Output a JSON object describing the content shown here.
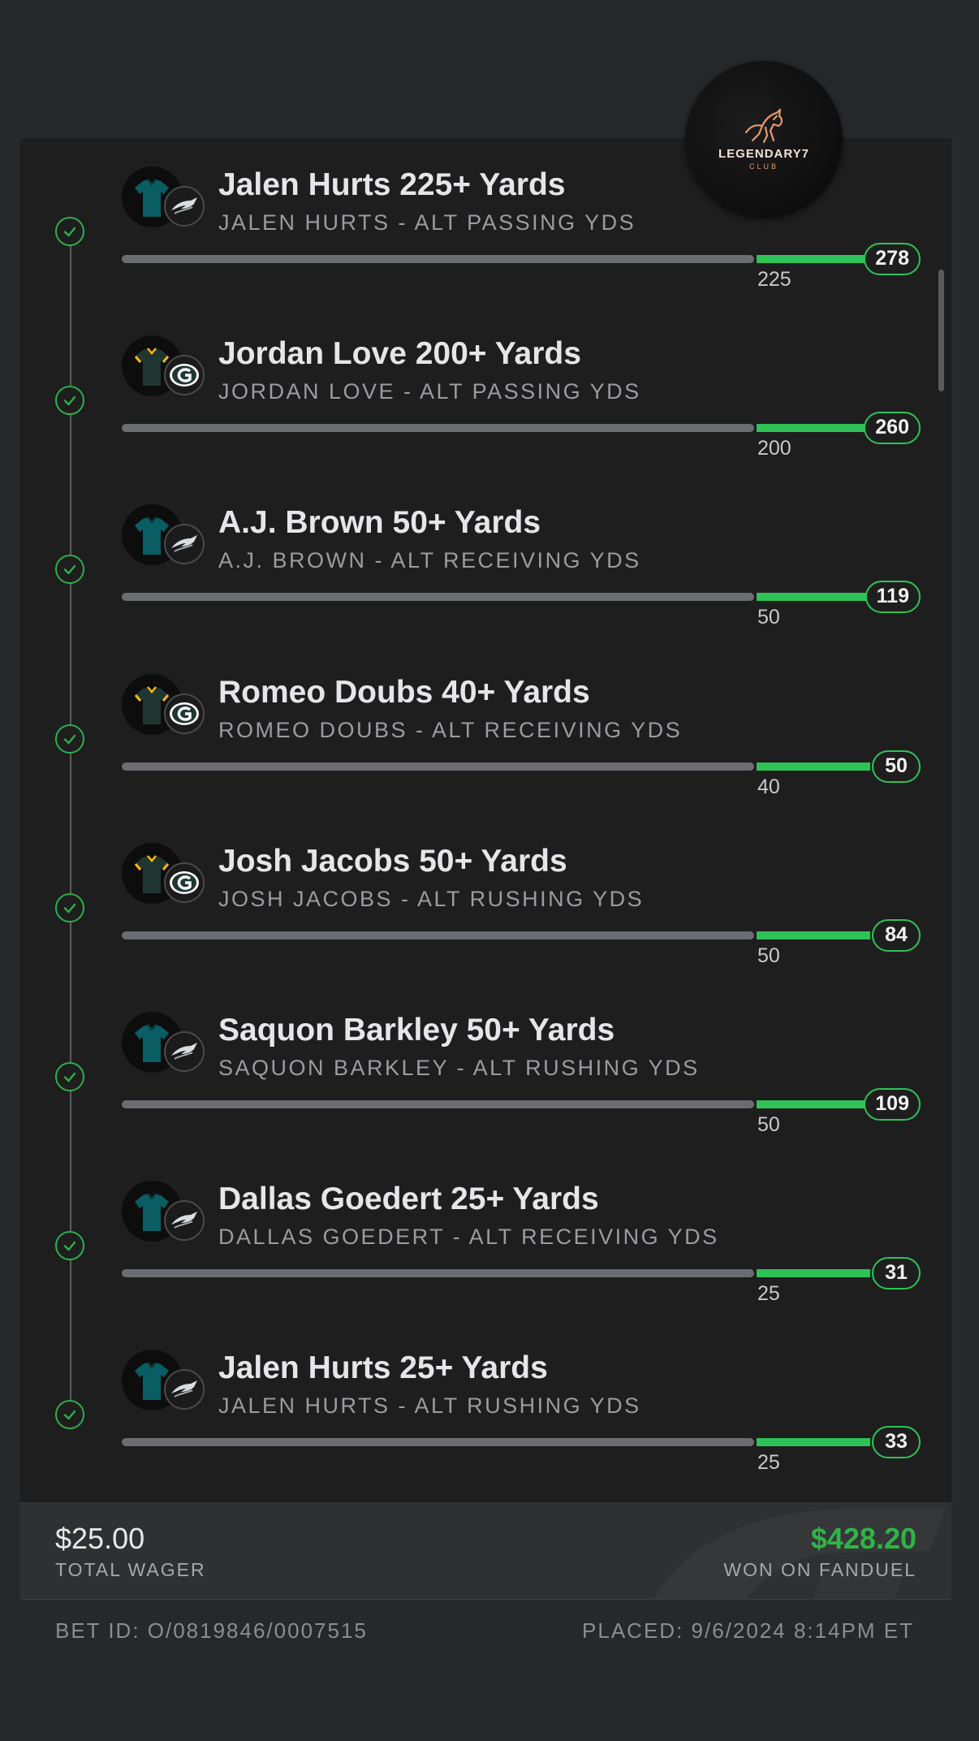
{
  "logo": {
    "name": "LEGENDARY7",
    "sub": "CLUB"
  },
  "colors": {
    "accent_green": "#2fc257",
    "won_green": "#2fb446",
    "eagles_green": "#0a5d63",
    "packers_green": "#203731",
    "packers_gold": "#ffb612"
  },
  "legs": [
    {
      "title": "Jalen Hurts 225+ Yards",
      "subtitle": "JALEN HURTS - ALT PASSING YDS",
      "threshold": "225",
      "result": "278",
      "team": "eagles",
      "team_icon": "eagles-logo-icon",
      "status": "won"
    },
    {
      "title": "Jordan Love 200+ Yards",
      "subtitle": "JORDAN LOVE - ALT PASSING YDS",
      "threshold": "200",
      "result": "260",
      "team": "packers",
      "team_icon": "packers-logo-icon",
      "status": "won"
    },
    {
      "title": "A.J. Brown 50+ Yards",
      "subtitle": "A.J. BROWN - ALT RECEIVING YDS",
      "threshold": "50",
      "result": "119",
      "team": "eagles",
      "team_icon": "eagles-logo-icon",
      "status": "won"
    },
    {
      "title": "Romeo Doubs 40+ Yards",
      "subtitle": "ROMEO DOUBS - ALT RECEIVING YDS",
      "threshold": "40",
      "result": "50",
      "team": "packers",
      "team_icon": "packers-logo-icon",
      "status": "won"
    },
    {
      "title": "Josh Jacobs 50+ Yards",
      "subtitle": "JOSH JACOBS - ALT RUSHING YDS",
      "threshold": "50",
      "result": "84",
      "team": "packers",
      "team_icon": "packers-logo-icon",
      "status": "won"
    },
    {
      "title": "Saquon Barkley 50+ Yards",
      "subtitle": "SAQUON BARKLEY - ALT RUSHING YDS",
      "threshold": "50",
      "result": "109",
      "team": "eagles",
      "team_icon": "eagles-logo-icon",
      "status": "won"
    },
    {
      "title": "Dallas Goedert 25+ Yards",
      "subtitle": "DALLAS GOEDERT - ALT RECEIVING YDS",
      "threshold": "25",
      "result": "31",
      "team": "eagles",
      "team_icon": "eagles-logo-icon",
      "status": "won"
    },
    {
      "title": "Jalen Hurts 25+ Yards",
      "subtitle": "JALEN HURTS - ALT RUSHING YDS",
      "threshold": "25",
      "result": "33",
      "team": "eagles",
      "team_icon": "eagles-logo-icon",
      "status": "won"
    }
  ],
  "footer": {
    "wager_amount": "$25.00",
    "wager_label": "TOTAL WAGER",
    "won_amount": "$428.20",
    "won_label": "WON ON FANDUEL",
    "bet_id": "BET ID: O/0819846/0007515",
    "placed": "PLACED: 9/6/2024 8:14PM ET"
  }
}
